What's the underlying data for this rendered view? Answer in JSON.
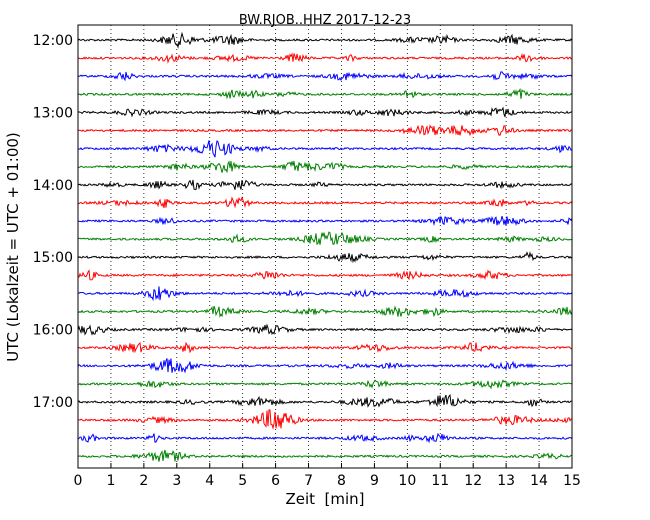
{
  "chart_data": {
    "type": "line",
    "title": "BW.RJOB..HHZ 2017-12-23",
    "xlabel": "Zeit  [min]",
    "ylabel": "UTC (Lokalzeit = UTC + 01:00)",
    "xlim": [
      0,
      15
    ],
    "x_ticks": [
      "0",
      "1",
      "2",
      "3",
      "4",
      "5",
      "6",
      "7",
      "8",
      "9",
      "10",
      "11",
      "12",
      "13",
      "14",
      "15"
    ],
    "y_ticks": [
      "12:00",
      "13:00",
      "14:00",
      "15:00",
      "16:00",
      "17:00"
    ],
    "grid": "vertical dotted",
    "line_colors": [
      "#000000",
      "#ff0000",
      "#0000ff",
      "#008000"
    ],
    "traces": [
      "12:00",
      "12:15",
      "12:30",
      "12:45",
      "13:00",
      "13:15",
      "13:30",
      "13:45",
      "14:00",
      "14:15",
      "14:30",
      "14:45",
      "15:00",
      "15:15",
      "15:30",
      "15:45",
      "16:00",
      "16:15",
      "16:30",
      "16:45",
      "17:00",
      "17:15",
      "17:30",
      "17:45"
    ]
  }
}
